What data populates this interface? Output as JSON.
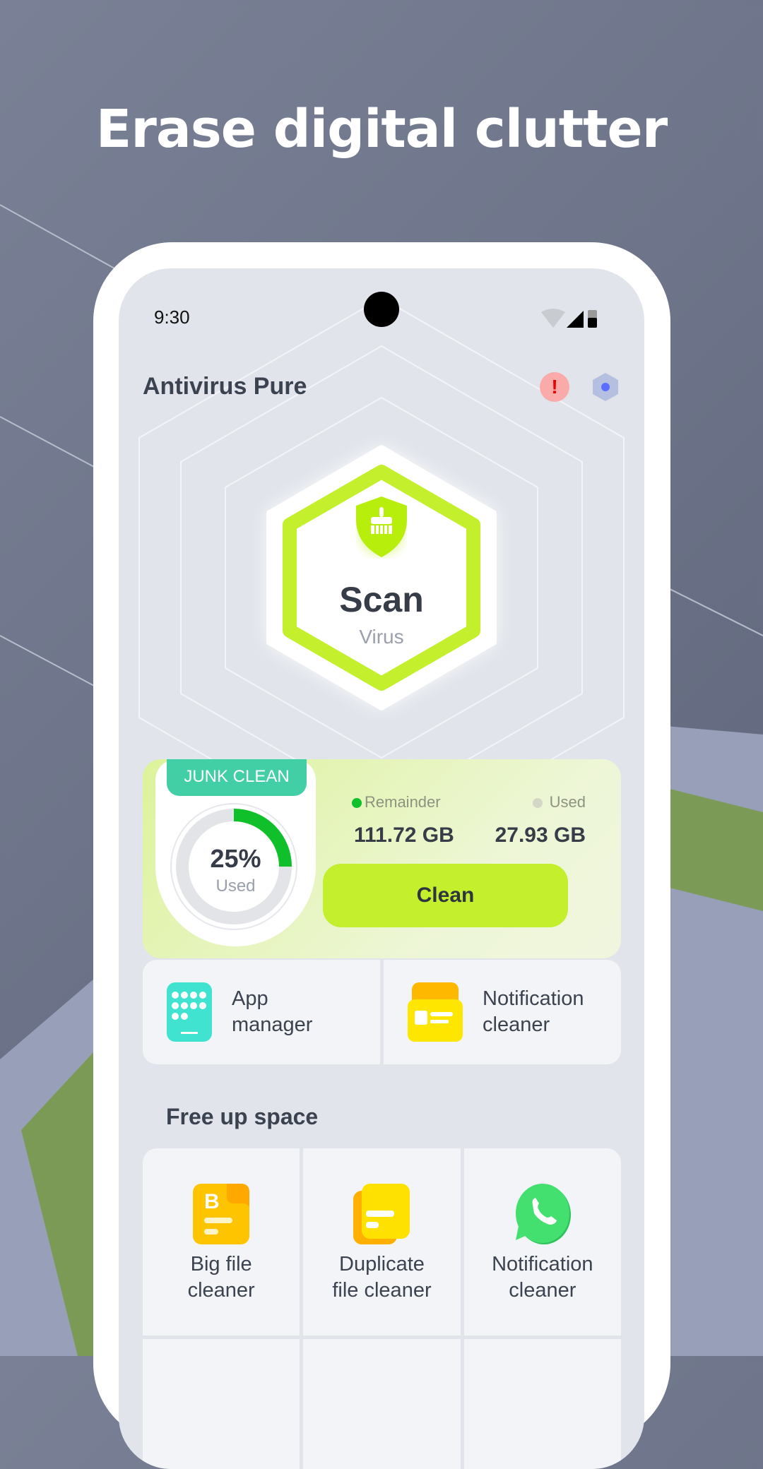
{
  "headline": "Erase digital clutter",
  "status_bar": {
    "time": "9:30",
    "icons": [
      "wifi-icon",
      "signal-icon",
      "battery-icon"
    ]
  },
  "app": {
    "title": "Antivirus Pure",
    "header_icons": [
      "alert-icon",
      "hexagon-settings-icon"
    ]
  },
  "scan": {
    "title": "Scan",
    "subtitle": "Virus",
    "icon": "shield-broom-icon",
    "accent": "#c3ef2d"
  },
  "junk_clean": {
    "tab": "JUNK CLEAN",
    "percent_label": "25%",
    "percent_value": 25,
    "percent_caption": "Used",
    "remainder_label": "Remainder",
    "remainder_value": "111.72 GB",
    "used_label": "Used",
    "used_value": "27.93 GB",
    "button": "Clean",
    "ring_color": "#10c02a"
  },
  "tools": [
    {
      "label_line1": "App",
      "label_line2": "manager",
      "icon": "app-grid-icon"
    },
    {
      "label_line1": "Notification",
      "label_line2": "cleaner",
      "icon": "notification-folder-icon"
    }
  ],
  "free_up": {
    "title": "Free up space",
    "items": [
      {
        "line1": "Big file",
        "line2": "cleaner",
        "icon": "big-file-icon"
      },
      {
        "line1": "Duplicate",
        "line2": "file cleaner",
        "icon": "duplicate-file-icon"
      },
      {
        "line1": "Notification",
        "line2": "cleaner",
        "icon": "whatsapp-icon"
      }
    ]
  }
}
